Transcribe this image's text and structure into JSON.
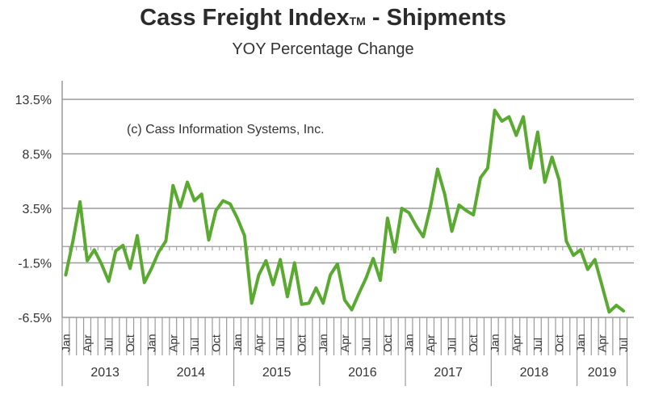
{
  "chart_data": {
    "type": "line",
    "title": "Cass Freight Index",
    "title_tm": "TM",
    "title_suffix": " - Shipments",
    "subtitle": "YOY Percentage Change",
    "annotation": "(c) Cass Information Systems, Inc.",
    "xlabel": "",
    "ylabel": "",
    "ylim": [
      -6.5,
      13.5
    ],
    "yticks": [
      13.5,
      8.5,
      3.5,
      -1.5,
      -6.5
    ],
    "ytick_labels": [
      "13.5%",
      "8.5%",
      "3.5%",
      "-1.5%",
      "-6.5%"
    ],
    "month_labels": [
      "Jan",
      "Apr",
      "Jul",
      "Oct"
    ],
    "years": [
      "2013",
      "2014",
      "2015",
      "2016",
      "2017",
      "2018",
      "2019"
    ],
    "grid": true,
    "line_color": "#5aaa32",
    "series": [
      {
        "name": "Shipments YOY %",
        "start": "2013-01",
        "values": [
          -2.6,
          0.5,
          4.1,
          -1.3,
          -0.3,
          -1.6,
          -3.2,
          -0.4,
          0.1,
          -2.0,
          1.0,
          -3.3,
          -2.0,
          -0.5,
          0.5,
          5.6,
          3.6,
          5.9,
          4.2,
          4.8,
          0.6,
          3.3,
          4.2,
          3.9,
          2.6,
          1.0,
          -5.2,
          -2.6,
          -1.3,
          -3.5,
          -1.2,
          -4.6,
          -1.5,
          -5.3,
          -5.2,
          -3.8,
          -5.2,
          -2.6,
          -1.6,
          -4.9,
          -5.8,
          -4.3,
          -2.9,
          -1.1,
          -3.1,
          2.6,
          -0.5,
          3.5,
          3.1,
          1.9,
          0.9,
          3.6,
          7.1,
          4.8,
          1.4,
          3.8,
          3.3,
          2.9,
          6.3,
          7.2,
          12.5,
          11.5,
          11.9,
          10.2,
          11.9,
          7.2,
          10.5,
          5.9,
          8.2,
          6.1,
          0.5,
          -0.8,
          -0.3,
          -2.1,
          -1.2,
          -3.6,
          -6.0,
          -5.4,
          -5.9
        ]
      }
    ]
  }
}
